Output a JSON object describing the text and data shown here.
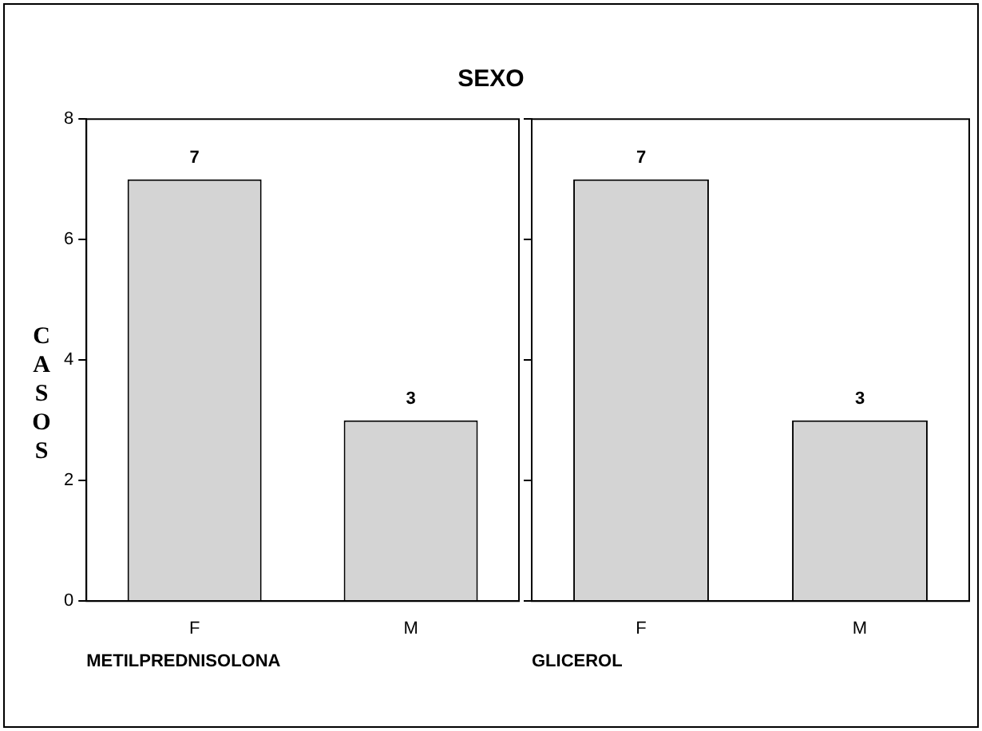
{
  "chart_data": [
    {
      "type": "bar",
      "title": "SEXO",
      "ylabel": "CASOS",
      "xlabel": "METILPREDNISOLONA",
      "categories": [
        "F",
        "M"
      ],
      "values": [
        7,
        3
      ],
      "color": "#d4d4d4",
      "ylim": [
        0,
        8
      ],
      "yticks": [
        0,
        2,
        4,
        6,
        8
      ],
      "grid": false,
      "data_labels": true
    },
    {
      "type": "bar",
      "xlabel": "GLICEROL",
      "categories": [
        "F",
        "M"
      ],
      "values": [
        7,
        3
      ],
      "color": "#d4d4d4",
      "ylim": [
        0,
        8
      ],
      "yticks": [
        0,
        2,
        4,
        6,
        8
      ],
      "grid": false,
      "data_labels": true,
      "tick_labels": "x"
    }
  ]
}
